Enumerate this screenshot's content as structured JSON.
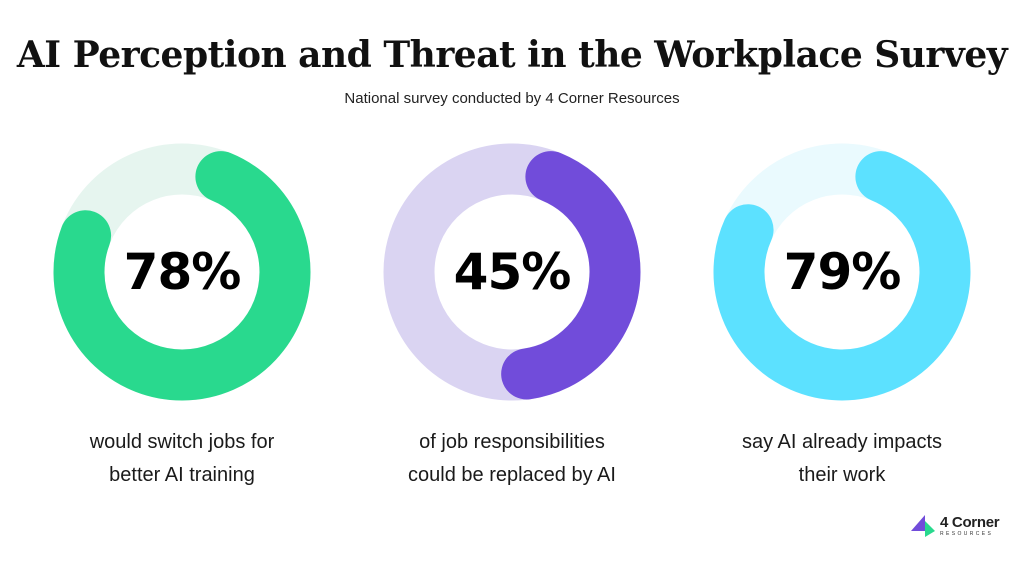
{
  "header": {
    "title": "AI Perception and Threat in the Workplace Survey",
    "subtitle": "National survey conducted by 4 Corner Resources"
  },
  "chart_data": {
    "type": "pie",
    "subtype": "donut-progress",
    "title": "AI Perception and Threat in the Workplace Survey",
    "subtitle": "National survey conducted by 4 Corner Resources",
    "series": [
      {
        "name": "would switch jobs for better AI training",
        "value": 78,
        "label": "78%",
        "caption_lines": [
          "would switch jobs for",
          "better AI training"
        ],
        "color": "#29D98E",
        "track_color": "#E6F5EF"
      },
      {
        "name": "of job responsibilities could be replaced by AI",
        "value": 45,
        "label": "45%",
        "caption_lines": [
          "of job responsibilities",
          "could be replaced by AI"
        ],
        "color": "#714CDA",
        "track_color": "#DAD4F2"
      },
      {
        "name": "say AI already impacts their work",
        "value": 79,
        "label": "79%",
        "caption_lines": [
          "say AI already impacts",
          "their work"
        ],
        "color": "#5CE1FF",
        "track_color": "#EAFAFE"
      }
    ],
    "unit": "%",
    "max": 100
  },
  "logo": {
    "name": "4 Corner",
    "tagline": "RESOURCES",
    "colors": {
      "purple": "#714CDA",
      "green": "#29D98E"
    }
  }
}
